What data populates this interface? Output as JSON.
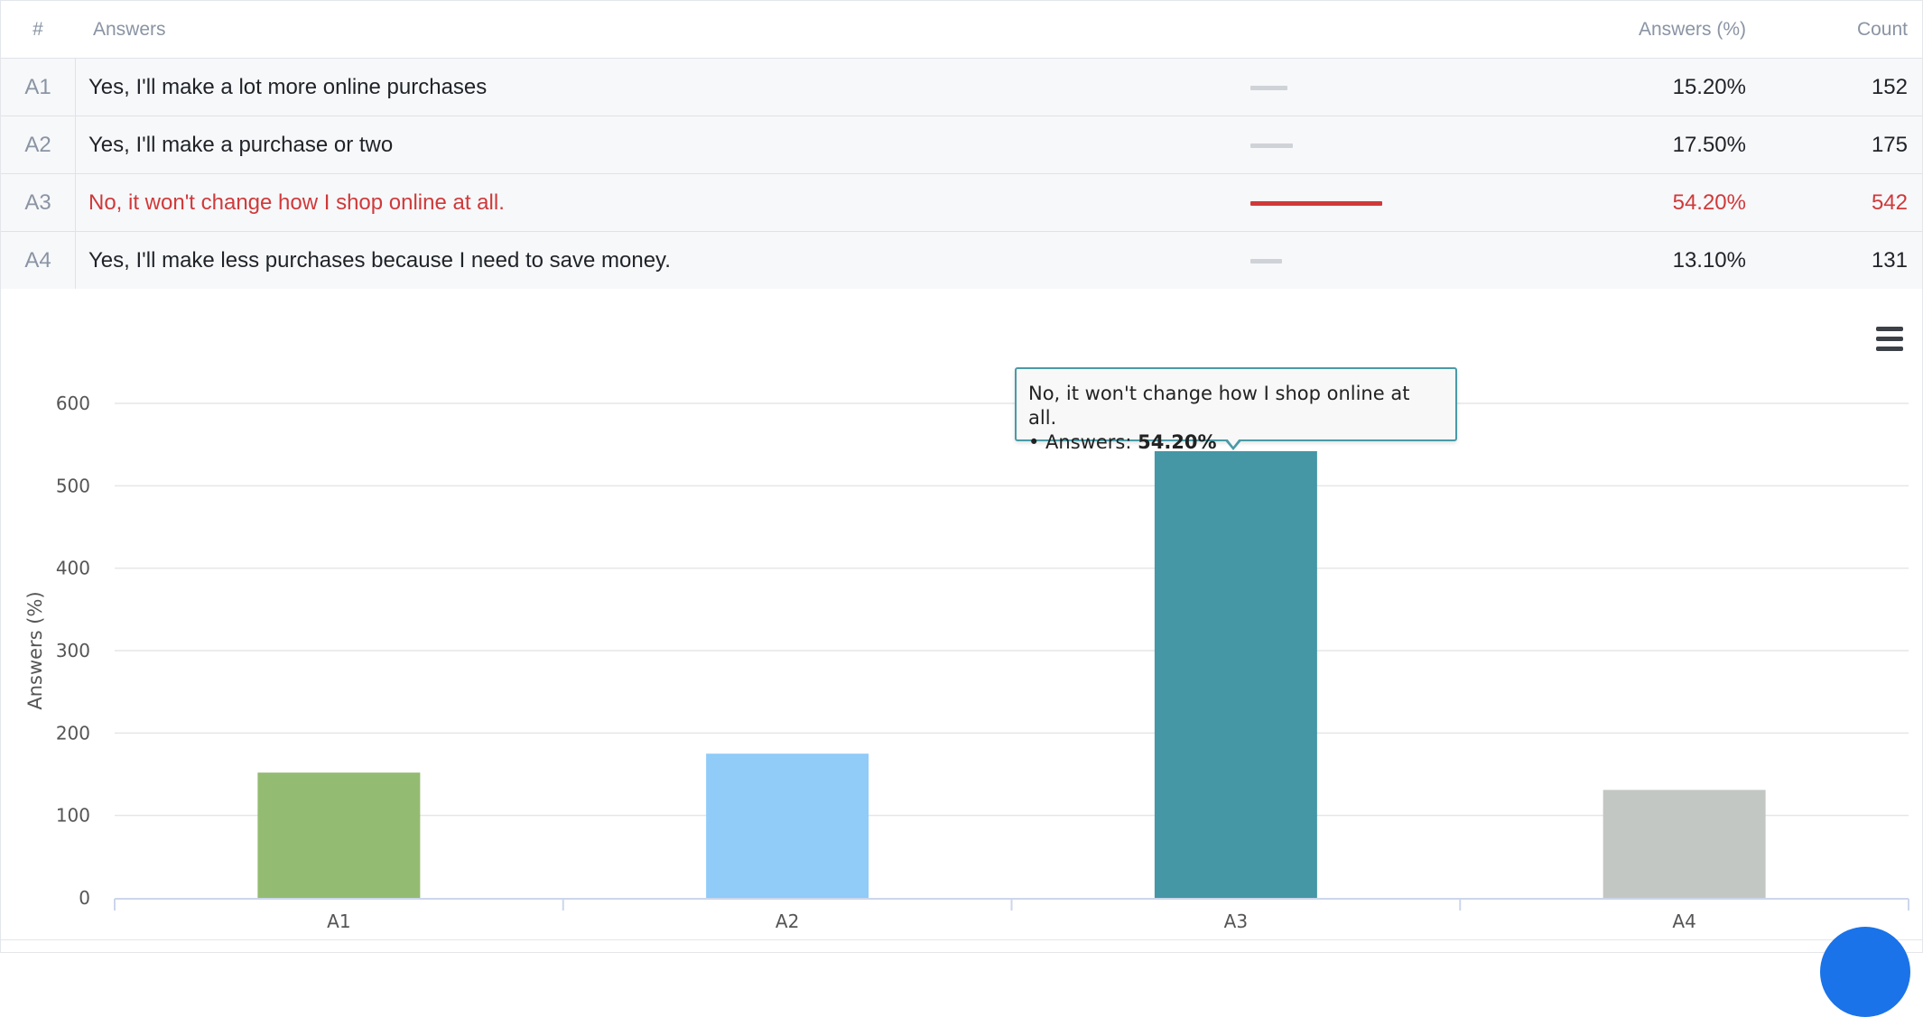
{
  "table": {
    "headers": {
      "number": "#",
      "answers": "Answers",
      "percent": "Answers (%)",
      "count": "Count"
    },
    "rows": [
      {
        "id": "A1",
        "text": "Yes, I'll make a lot more online purchases",
        "percent": "15.20%",
        "count": "152",
        "share": 0.152,
        "selected": false
      },
      {
        "id": "A2",
        "text": "Yes, I'll make a purchase or two",
        "percent": "17.50%",
        "count": "175",
        "share": 0.175,
        "selected": false
      },
      {
        "id": "A3",
        "text": "No, it won't change how I shop online at all.",
        "percent": "54.20%",
        "count": "542",
        "share": 0.542,
        "selected": true
      },
      {
        "id": "A4",
        "text": "Yes, I'll make less purchases because I need to save money.",
        "percent": "13.10%",
        "count": "131",
        "share": 0.131,
        "selected": false
      }
    ],
    "colors": {
      "selected": "#d0393a",
      "bar_default": "#cfd2d6"
    }
  },
  "chart_data": {
    "type": "bar",
    "categories": [
      "A1",
      "A2",
      "A3",
      "A4"
    ],
    "values": [
      152,
      175,
      542,
      131
    ],
    "colors": [
      "#94bb72",
      "#91cbf8",
      "#4597a5",
      "#c3c7c4"
    ],
    "ylabel": "Answers (%)",
    "xlabel": "",
    "ylim": [
      0,
      600
    ],
    "yticks": [
      0,
      100,
      200,
      300,
      400,
      500,
      600
    ],
    "grid": true,
    "tooltip": {
      "title": "No, it won't change how I shop online at all.",
      "label": "• Answers: ",
      "value": "54.20%"
    }
  },
  "chart_menu": {
    "icon": "hamburger-menu-icon"
  }
}
